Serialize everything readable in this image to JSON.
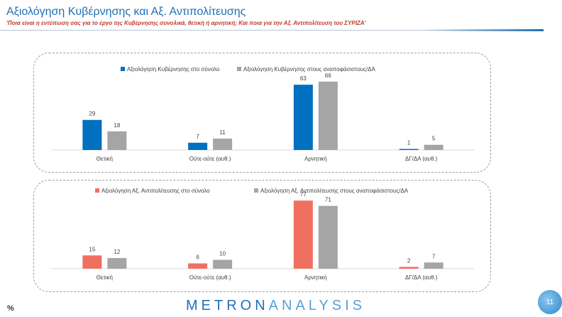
{
  "header": {
    "title": "Αξιολόγηση Κυβέρνησης και Αξ. Αντιπολίτευσης",
    "subtitle": "'Ποια είναι η εντύπωση σας για το έργο της Κυβέρνησης συνολικά, θετική ή αρνητική; Και ποια για την Αξ. Αντιπολίτευση του ΣΥΡΙΖΑ'"
  },
  "footer": {
    "percent_label": "%",
    "logo_primary": "METRON",
    "logo_secondary": "ANALYSIS",
    "page_number": "11"
  },
  "chart_data": [
    {
      "type": "bar",
      "categories": [
        "Θετική",
        "Ούτε-ούτε (αυθ.)",
        "Αρνητική",
        "ΔΓ/ΔΑ (αυθ.)"
      ],
      "series": [
        {
          "name": "Αξιολόγηση Κυβέρνησης στο σύνολο",
          "values": [
            29,
            7,
            63,
            1
          ],
          "color": "#0070c0"
        },
        {
          "name": "Αξιολόγηση Κυβέρνησης στους αναποφάσιστους/ΔΑ",
          "values": [
            18,
            11,
            66,
            5
          ],
          "color": "#a5a5a5"
        }
      ],
      "legend": "top",
      "grid": false,
      "ylim": [
        0,
        70
      ]
    },
    {
      "type": "bar",
      "categories": [
        "Θετική",
        "Ούτε-ούτε (αυθ.)",
        "Αρνητική",
        "ΔΓ/ΔΑ (αυθ.)"
      ],
      "series": [
        {
          "name": "Αξιολόγηση Αξ. Αντιπολίτευσης στο σύνολο",
          "values": [
            15,
            6,
            77,
            2
          ],
          "color": "#f07060"
        },
        {
          "name": "Αξιολόγηση Αξ. Αντιπολίτευσης στους αναποφάσιστους/ΔΑ",
          "values": [
            12,
            10,
            71,
            7
          ],
          "color": "#a5a5a5"
        }
      ],
      "legend": "top",
      "grid": false,
      "ylim": [
        0,
        82
      ]
    }
  ]
}
